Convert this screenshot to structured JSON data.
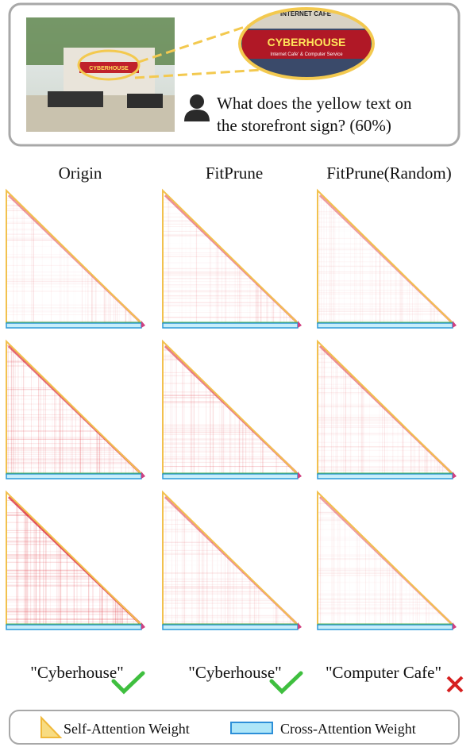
{
  "figure": {
    "photo": {
      "top_sign": "INTERNET CAFE'",
      "sign_text": "CYBERHOUSE",
      "sign_subtext": "Internet Cafe' & Computer Service"
    },
    "question": {
      "lines": [
        "What does the yellow text on",
        "the storefront sign? (60%)"
      ]
    },
    "columns": [
      "Origin",
      "FitPrune",
      "FitPrune(Random)"
    ],
    "answers": [
      "\"Cyberhouse\"",
      "\"Cyberhouse\"",
      "\"Computer Cafe\""
    ],
    "legend": [
      "Self-Attention Weight",
      "Cross-Attention Weight"
    ]
  }
}
